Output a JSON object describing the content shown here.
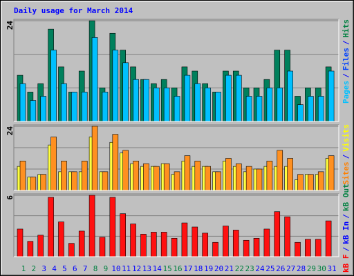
{
  "chart_data": [
    {
      "type": "bar",
      "title": "Daily usage for March 2014",
      "ylim": [
        0,
        24
      ],
      "yticks": [
        24
      ],
      "gridlines": [
        8,
        16
      ],
      "legend": [
        "Pages",
        "Files",
        "Hits"
      ],
      "legend_colors": [
        "#00c0ff",
        "#0040ff",
        "#008040"
      ],
      "series": [
        {
          "color": "#00805c",
          "values": [
            11,
            7,
            9,
            22,
            13,
            7,
            12,
            24,
            8,
            21,
            17,
            13,
            10,
            9,
            10,
            8,
            13,
            12,
            9,
            7,
            12,
            12,
            8,
            8,
            10,
            17,
            17,
            6,
            8,
            8,
            13
          ]
        },
        {
          "color": "#00c0ff",
          "values": [
            9,
            5,
            6,
            17,
            9,
            7,
            7,
            20,
            7,
            17,
            14,
            10,
            10,
            8,
            8,
            6,
            11,
            9,
            8,
            7,
            11,
            11,
            6,
            6,
            8,
            8,
            12,
            4,
            6,
            6,
            12
          ]
        }
      ]
    },
    {
      "type": "bar",
      "ylim": [
        0,
        24
      ],
      "yticks": [
        24
      ],
      "gridlines": [
        8,
        16
      ],
      "legend": [
        "Sites",
        "Visits"
      ],
      "legend_colors": [
        "#ff8000",
        "#ffff00"
      ],
      "series": [
        {
          "color": "#ffff40",
          "values": [
            9,
            5,
            6,
            17,
            7,
            7,
            7,
            20,
            7,
            18,
            14,
            10,
            9,
            9,
            10,
            6,
            11,
            9,
            9,
            7,
            11,
            9,
            7,
            8,
            9,
            9,
            9,
            4,
            6,
            6,
            12
          ]
        },
        {
          "color": "#ff9020",
          "values": [
            11,
            5,
            6,
            20,
            11,
            7,
            11,
            24,
            7,
            21,
            15,
            11,
            10,
            9,
            10,
            7,
            13,
            11,
            9,
            7,
            12,
            10,
            9,
            8,
            11,
            15,
            12,
            6,
            6,
            7,
            13
          ]
        }
      ]
    },
    {
      "type": "bar",
      "ylim": [
        0,
        6
      ],
      "yticks": [
        6
      ],
      "gridlines": [
        2,
        4
      ],
      "legend": [
        "kB F",
        "kB In",
        "kB Out"
      ],
      "legend_colors": [
        "#ff0000",
        "#0000ff",
        "#008040"
      ],
      "series": [
        {
          "color": "#ff1010",
          "values": [
            2.7,
            1.5,
            2.1,
            5.8,
            3.4,
            1.3,
            2.5,
            6,
            1.9,
            5.8,
            4.2,
            3.2,
            2.2,
            2.4,
            2.4,
            1.8,
            3.3,
            2.9,
            2.3,
            1.4,
            3.0,
            2.6,
            1.6,
            1.8,
            2.7,
            4.4,
            3.9,
            1.4,
            1.7,
            1.7,
            3.5
          ]
        }
      ],
      "categories": [
        "1",
        "2",
        "3",
        "4",
        "5",
        "6",
        "7",
        "8",
        "9",
        "10",
        "11",
        "12",
        "13",
        "14",
        "15",
        "16",
        "17",
        "18",
        "19",
        "20",
        "21",
        "22",
        "23",
        "24",
        "25",
        "26",
        "27",
        "28",
        "29",
        "30",
        "31"
      ],
      "category_colors": [
        "#008040",
        "#008040",
        "#0000ff",
        "#0000ff",
        "#0000ff",
        "#0000ff",
        "#0000ff",
        "#008040",
        "#008040",
        "#0000ff",
        "#0000ff",
        "#0000ff",
        "#0000ff",
        "#0000ff",
        "#008040",
        "#008040",
        "#0000ff",
        "#0000ff",
        "#0000ff",
        "#0000ff",
        "#0000ff",
        "#008040",
        "#008040",
        "#0000ff",
        "#0000ff",
        "#0000ff",
        "#0000ff",
        "#0000ff",
        "#008040",
        "#008040",
        "#0000ff"
      ]
    }
  ],
  "separator": "/"
}
